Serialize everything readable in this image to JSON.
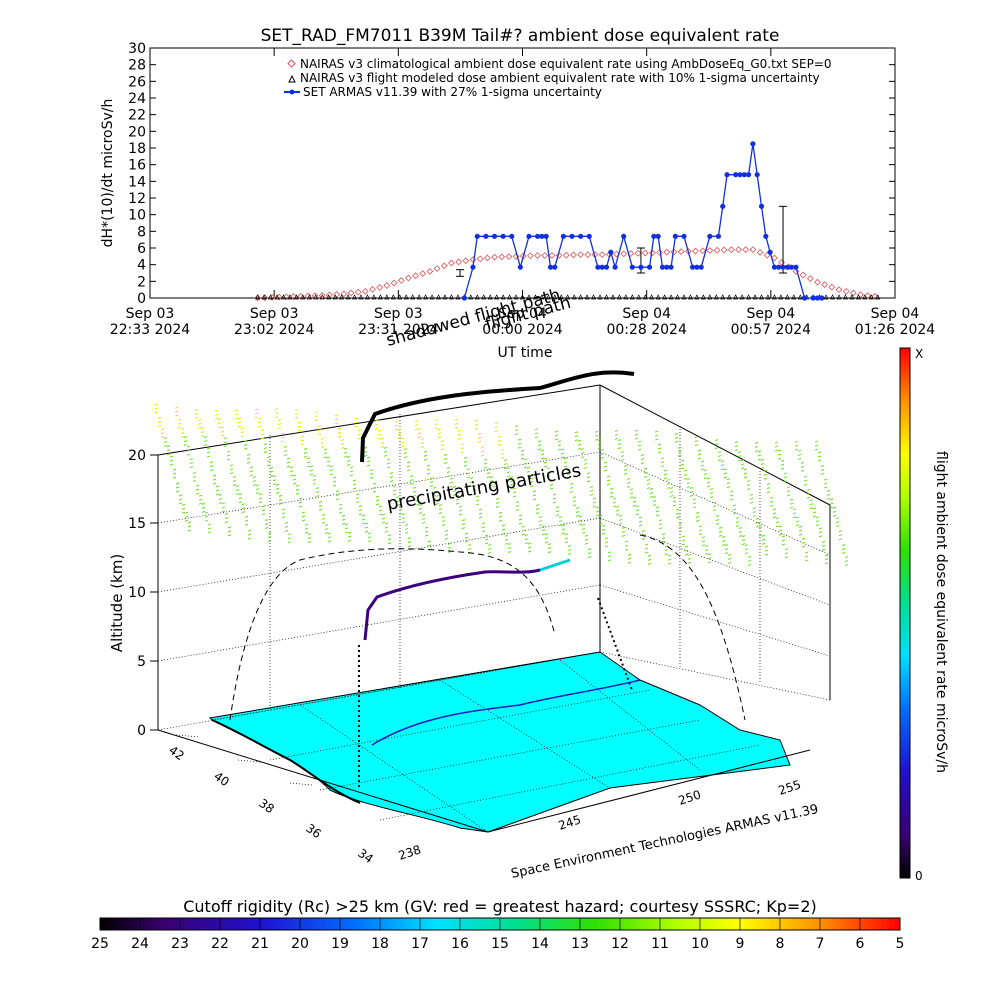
{
  "colors": {
    "nairas_clim": "#e05050",
    "nairas_flight": "#000000",
    "armas": "#1030e0",
    "ground": "#00ffff",
    "particles_yellow": "#e6e600",
    "particles_green": "#66dd22"
  },
  "chart_data": [
    {
      "type": "line",
      "title": "SET_RAD_FM7011  B39M Tail#? ambient dose equivalent rate",
      "xlabel": "UT time",
      "ylabel": "dH*(10)/dt microSv/h",
      "ylim": [
        0,
        30
      ],
      "yticks": [
        "0",
        "2",
        "4",
        "6",
        "8",
        "10",
        "12",
        "14",
        "16",
        "18",
        "20",
        "22",
        "24",
        "26",
        "28",
        "30"
      ],
      "xticks": [
        [
          "Sep 03",
          "22:33 2024"
        ],
        [
          "Sep 03",
          "23:02 2024"
        ],
        [
          "Sep 03",
          "23:31 2024"
        ],
        [
          "Sep 04",
          "00:00 2024"
        ],
        [
          "Sep 04",
          "00:28 2024"
        ],
        [
          "Sep 04",
          "00:57 2024"
        ],
        [
          "Sep 04",
          "01:26 2024"
        ]
      ],
      "xlim_minutes": [
        0,
        173
      ],
      "annotations": [
        "shadowed flight path",
        "flight path"
      ],
      "legend": [
        "NAIRAS v3 climatological ambient dose equivalent rate using AmbDoseEq_G0.txt SEP=0",
        "NAIRAS v3 flight modeled dose ambient equivalent rate with 10% 1-sigma uncertainty",
        "SET ARMAS v11.39 with 27% 1-sigma uncertainty"
      ],
      "series": [
        {
          "name": "NAIRAS v3 climatological ambient dose equivalent rate using AmbDoseEq_G0.txt SEP=0",
          "marker": "diamond",
          "x_minutes": [
            25,
            30,
            35,
            40,
            45,
            50,
            55,
            60,
            65,
            70,
            75,
            80,
            85,
            90,
            95,
            100,
            105,
            110,
            115,
            120,
            125,
            130,
            135,
            140,
            145,
            150,
            155,
            160,
            165,
            170
          ],
          "y": [
            0,
            0.1,
            0.2,
            0.3,
            0.5,
            0.8,
            1.5,
            2.4,
            3.2,
            4.2,
            4.6,
            4.9,
            5.0,
            5.1,
            5.1,
            5.2,
            5.2,
            5.3,
            5.4,
            5.5,
            5.6,
            5.7,
            5.8,
            5.8,
            4.8,
            3.2,
            1.9,
            1.0,
            0.4,
            0.1
          ]
        },
        {
          "name": "NAIRAS v3 flight modeled dose ambient equivalent rate with 10% 1-sigma uncertainty",
          "marker": "triangle",
          "x_minutes": [
            25,
            35,
            45,
            55,
            65,
            75,
            85,
            95,
            105,
            115,
            125,
            135,
            145,
            155,
            165,
            170
          ],
          "y": [
            0,
            0,
            0,
            0,
            0,
            0,
            0,
            0,
            0,
            0,
            0,
            0,
            0,
            0,
            0,
            0
          ],
          "error_bars": [
            {
              "x_minutes": 72,
              "y": 3,
              "err": 0.4
            },
            {
              "x_minutes": 114,
              "y": 4.5,
              "err": 1.5
            },
            {
              "x_minutes": 147,
              "y": 7,
              "err": 4
            }
          ]
        },
        {
          "name": "SET ARMAS v11.39 with 27% 1-sigma uncertainty",
          "marker": "circle",
          "x_minutes": [
            73,
            75,
            76,
            78,
            80,
            82,
            84,
            86,
            88,
            90,
            91,
            92,
            93,
            94,
            96,
            98,
            100,
            102,
            104,
            105,
            106,
            107,
            108,
            110,
            112,
            114,
            116,
            117,
            118,
            119,
            120,
            121,
            122,
            124,
            126,
            127,
            128,
            130,
            132,
            133,
            134,
            136,
            137,
            138,
            139,
            140,
            141,
            142,
            143,
            144,
            145,
            146,
            147,
            148,
            149,
            150,
            152,
            154,
            155,
            156
          ],
          "y": [
            0,
            3.7,
            7.4,
            7.4,
            7.4,
            7.4,
            7.4,
            3.7,
            7.4,
            7.4,
            7.4,
            7.4,
            3.7,
            3.7,
            7.4,
            7.4,
            7.4,
            7.4,
            3.7,
            3.7,
            3.7,
            5.5,
            3.7,
            7.4,
            3.7,
            3.7,
            3.7,
            7.4,
            7.4,
            3.7,
            3.7,
            3.7,
            7.4,
            7.4,
            3.7,
            3.7,
            3.7,
            7.4,
            7.4,
            11,
            14.8,
            14.8,
            14.8,
            14.8,
            14.8,
            18.5,
            14.8,
            11,
            7.4,
            5.5,
            3.7,
            3.7,
            3.7,
            3.7,
            3.7,
            3.7,
            0,
            0,
            0,
            0
          ]
        }
      ]
    },
    {
      "type": "scatter",
      "zlabel": "Altitude (km)",
      "zticks": [
        "0",
        "5",
        "10",
        "15",
        "20"
      ],
      "lat_ticks": [
        "42",
        "40",
        "38",
        "36",
        "34"
      ],
      "lon_ticks": [
        "238",
        "245",
        "250",
        "255"
      ],
      "annotations": [
        "precipitating particles"
      ],
      "credit": "Space Environment Technologies ARMAS v11.39"
    },
    {
      "type": "heatmap",
      "title": "Cutoff rigidity (Rc) >25 km (GV: red = greatest hazard; courtesy SSSRC; Kp=2)",
      "ticks": [
        "25",
        "24",
        "23",
        "22",
        "21",
        "20",
        "19",
        "18",
        "17",
        "16",
        "15",
        "14",
        "13",
        "12",
        "11",
        "10",
        "9",
        "8",
        "7",
        "6",
        "5"
      ]
    },
    {
      "type": "heatmap",
      "title": "flight ambient dose equivalent rate microSv/h",
      "top_label": "X",
      "bottom_label": "0"
    }
  ]
}
